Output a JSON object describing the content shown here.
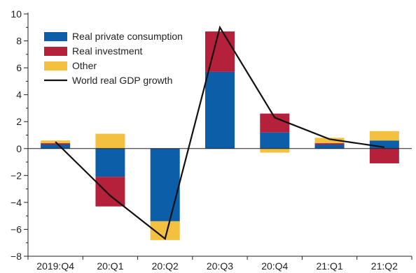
{
  "chart_data": {
    "type": "bar",
    "stacked": true,
    "categories": [
      "2019:Q4",
      "20:Q1",
      "20:Q2",
      "20:Q3",
      "20:Q4",
      "21:Q1",
      "21:Q2"
    ],
    "series": [
      {
        "name": "Real private consumption",
        "color": "#0d5ea8",
        "values": [
          0.3,
          -2.1,
          -5.4,
          5.7,
          1.2,
          0.3,
          0.6
        ]
      },
      {
        "name": "Real investment",
        "color": "#b5203a",
        "values": [
          0.1,
          -2.2,
          0.0,
          3.0,
          1.4,
          0.1,
          -1.1
        ]
      },
      {
        "name": "Other",
        "color": "#f3c03f",
        "values": [
          0.2,
          1.1,
          -1.4,
          0.0,
          -0.3,
          0.4,
          0.7
        ]
      }
    ],
    "line": {
      "name": "World real GDP growth",
      "color": "#111111",
      "values": [
        0.5,
        -3.5,
        -6.7,
        9.0,
        2.3,
        0.7,
        0.1
      ]
    },
    "ylim": [
      -8,
      10
    ],
    "yticks": [
      "10",
      "8",
      "6",
      "4",
      "2",
      "0",
      "−2",
      "−4",
      "−6",
      "−8"
    ],
    "yticks_values": [
      10,
      8,
      6,
      4,
      2,
      0,
      -2,
      -4,
      -6,
      -8
    ],
    "legend_position": "top-left",
    "grid": false,
    "title": "",
    "xlabel": "",
    "ylabel": ""
  }
}
